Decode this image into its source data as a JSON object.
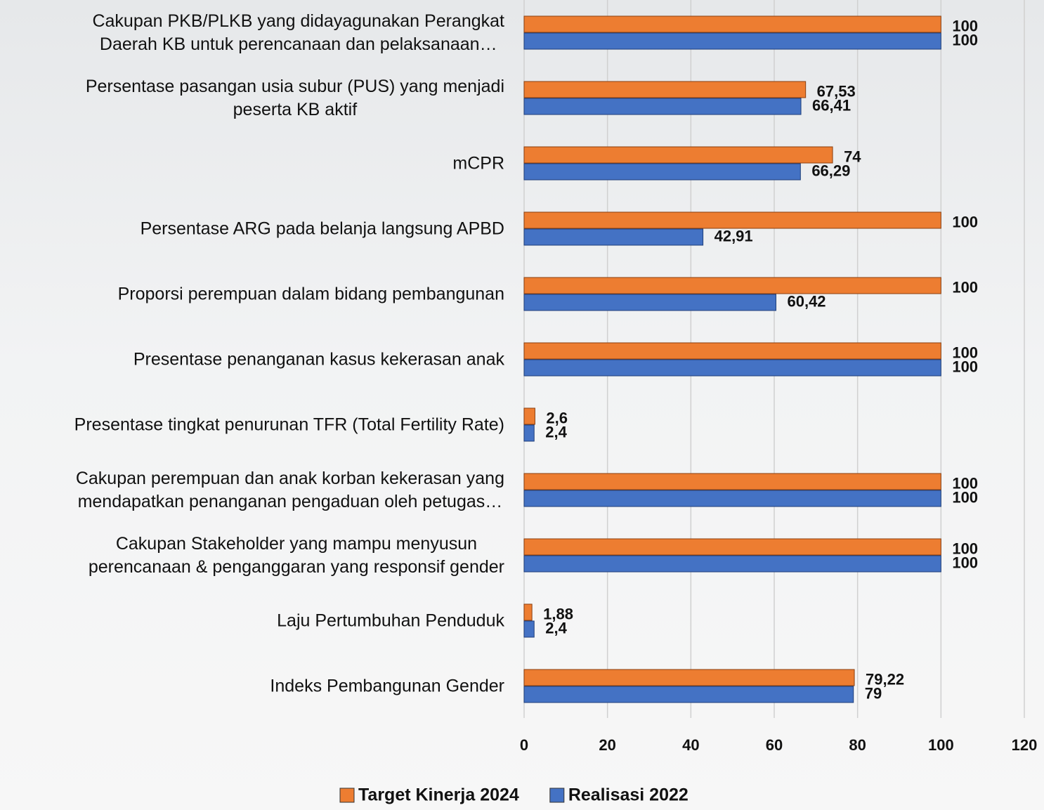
{
  "chart_data": {
    "type": "barh",
    "categories": [
      "Cakupan PKB/PLKB yang didayagunakan Perangkat\nDaerah KB untuk perencanaan dan pelaksanaan…",
      "Persentase pasangan usia subur (PUS) yang menjadi\npeserta KB aktif",
      "mCPR",
      "Persentase ARG pada belanja langsung APBD",
      "Proporsi perempuan dalam bidang pembangunan",
      "Presentase penanganan kasus kekerasan anak",
      "Presentase tingkat penurunan TFR (Total Fertility Rate)",
      "Cakupan perempuan dan anak korban kekerasan yang\nmendapatkan penanganan pengaduan oleh petugas…",
      "Cakupan Stakeholder yang mampu menyusun\nperencanaan & penganggaran yang responsif gender",
      "Laju Pertumbuhan Penduduk",
      "Indeks Pembangunan Gender"
    ],
    "series": [
      {
        "name": "Target Kinerja 2024",
        "color": "#ED7D31",
        "values": [
          100,
          67.53,
          74,
          100,
          100,
          100,
          2.6,
          100,
          100,
          1.88,
          79.22
        ],
        "value_labels": [
          "100",
          "67,53",
          "74",
          "100",
          "100",
          "100",
          "2,6",
          "100",
          "100",
          "1,88",
          "79,22"
        ]
      },
      {
        "name": "Realisasi 2022",
        "color": "#4472C4",
        "values": [
          100,
          66.41,
          66.29,
          42.91,
          60.42,
          100,
          2.4,
          100,
          100,
          2.4,
          79
        ],
        "value_labels": [
          "100",
          "66,41",
          "66,29",
          "42,91",
          "60,42",
          "100",
          "2,4",
          "100",
          "100",
          "2,4",
          "79"
        ]
      }
    ],
    "xlim": [
      0,
      120
    ],
    "xticks": [
      0,
      20,
      40,
      60,
      80,
      100,
      120
    ],
    "grid": true
  }
}
